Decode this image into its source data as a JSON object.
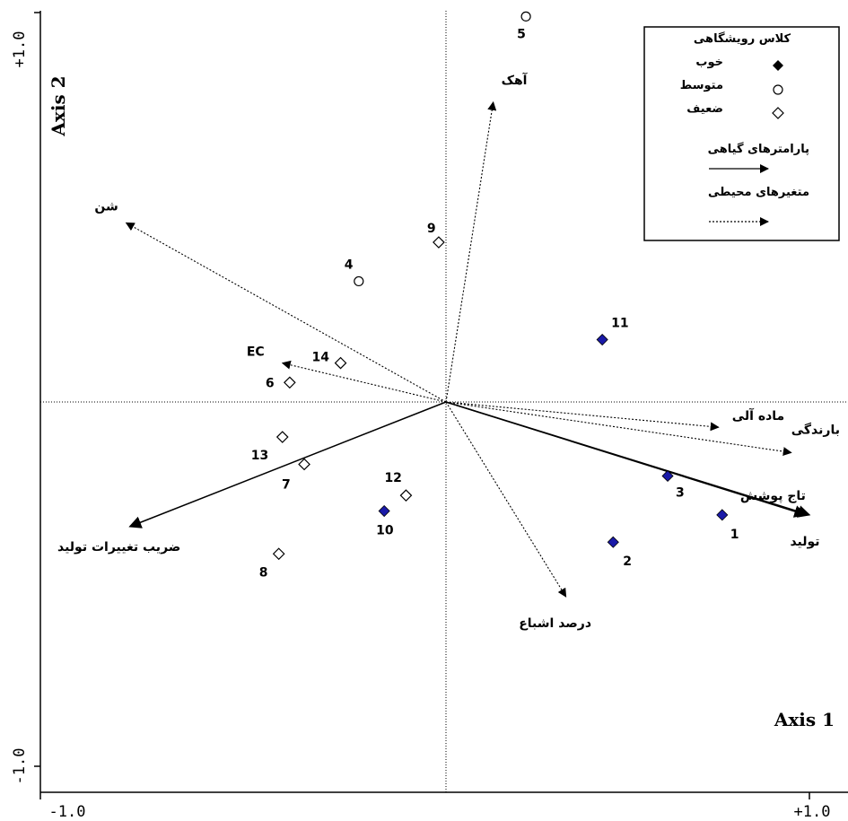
{
  "chart_data": {
    "type": "scatter",
    "title": "",
    "xlabel": "Axis 1",
    "ylabel": "Axis 2",
    "xlim": [
      -1.0,
      1.0
    ],
    "ylim": [
      -1.0,
      1.0
    ],
    "x_tick_labels": [
      "-1.0",
      "+1.0"
    ],
    "y_tick_labels": [
      "-1.0",
      "+1.0"
    ],
    "grid": false,
    "legend_position": "top-right",
    "legend": {
      "title": "کلاس رویشگاهی",
      "classes": [
        {
          "label": "خوب",
          "marker": "filled-diamond"
        },
        {
          "label": "متوسط",
          "marker": "open-circle"
        },
        {
          "label": "ضعیف",
          "marker": "open-diamond"
        }
      ],
      "plant_params_label": "پارامترهای گیاهی",
      "env_vars_label": "متغیرهای محیطی"
    },
    "points": [
      {
        "label": "1",
        "x": 0.76,
        "y": -0.29,
        "class": "خوب"
      },
      {
        "label": "2",
        "x": 0.46,
        "y": -0.36,
        "class": "خوب"
      },
      {
        "label": "3",
        "x": 0.61,
        "y": -0.19,
        "class": "خوب"
      },
      {
        "label": "4",
        "x": -0.24,
        "y": 0.31,
        "class": "متوسط"
      },
      {
        "label": "5",
        "x": 0.22,
        "y": 0.99,
        "class": "متوسط"
      },
      {
        "label": "6",
        "x": -0.43,
        "y": 0.05,
        "class": "ضعیف"
      },
      {
        "label": "7",
        "x": -0.39,
        "y": -0.16,
        "class": "ضعیف"
      },
      {
        "label": "8",
        "x": -0.46,
        "y": -0.39,
        "class": "ضعیف"
      },
      {
        "label": "9",
        "x": -0.02,
        "y": 0.41,
        "class": "ضعیف"
      },
      {
        "label": "10",
        "x": -0.17,
        "y": -0.28,
        "class": "خوب"
      },
      {
        "label": "11",
        "x": 0.43,
        "y": 0.16,
        "class": "خوب"
      },
      {
        "label": "12",
        "x": -0.11,
        "y": -0.24,
        "class": "ضعیف"
      },
      {
        "label": "13",
        "x": -0.45,
        "y": -0.09,
        "class": "ضعیف"
      },
      {
        "label": "14",
        "x": -0.29,
        "y": 0.1,
        "class": "ضعیف"
      }
    ],
    "vectors": [
      {
        "label": "تولید",
        "x": 1.0,
        "y": -0.29,
        "type": "plant"
      },
      {
        "label": "تاج پوشش",
        "x": 0.99,
        "y": -0.29,
        "type": "plant"
      },
      {
        "label": "ضریب تغییرات تولید",
        "x": -0.87,
        "y": -0.32,
        "type": "plant"
      },
      {
        "label": "شن",
        "x": -0.88,
        "y": 0.46,
        "type": "environment"
      },
      {
        "label": "آهک",
        "x": 0.13,
        "y": 0.77,
        "type": "environment"
      },
      {
        "label": "EC",
        "x": -0.45,
        "y": 0.1,
        "type": "environment"
      },
      {
        "label": "ماده آلی",
        "x": 0.75,
        "y": -0.065,
        "type": "environment"
      },
      {
        "label": "بارندگی",
        "x": 0.95,
        "y": -0.13,
        "type": "environment"
      },
      {
        "label": "درصد اشباع",
        "x": 0.33,
        "y": -0.5,
        "type": "environment"
      }
    ]
  },
  "colors": {
    "good_fill": "#1a1aa8",
    "axis": "#000000",
    "background": "#ffffff"
  }
}
